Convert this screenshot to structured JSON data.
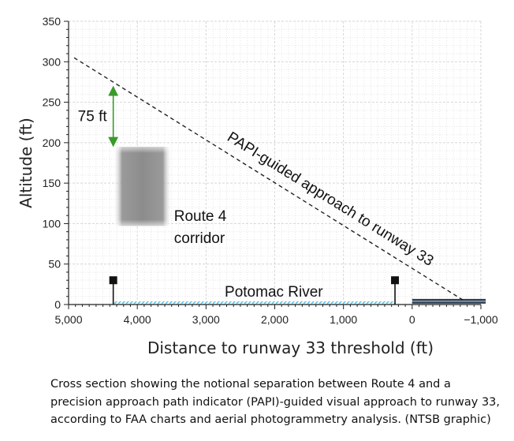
{
  "chart_data": {
    "type": "line",
    "xlabel": "Distance to runway 33 threshold (ft)",
    "ylabel": "Altitude (ft)",
    "xlim": [
      5000,
      -1000
    ],
    "ylim": [
      0,
      350
    ],
    "x_ticks": [
      5000,
      4000,
      3000,
      2000,
      1000,
      0,
      -1000
    ],
    "x_tick_labels": [
      "5,000",
      "4,000",
      "3,000",
      "2,000",
      "1,000",
      "0",
      "−1,000"
    ],
    "y_ticks": [
      0,
      50,
      100,
      150,
      200,
      250,
      300,
      350
    ],
    "y_tick_labels": [
      "0",
      "50",
      "100",
      "150",
      "200",
      "250",
      "300",
      "350"
    ],
    "grid": true,
    "series": [
      {
        "name": "PAPI-guided approach to runway 33",
        "style": "dashed",
        "color": "#222222",
        "x": [
          4920,
          -750
        ],
        "y": [
          305,
          5
        ]
      }
    ],
    "separation": {
      "label": "75 ft",
      "x": 4350,
      "y_from": 270,
      "y_to": 195,
      "color": "#3a9a2a"
    },
    "corridor": {
      "label_line1": "Route 4",
      "label_line2": "corridor",
      "x_from": 4350,
      "x_to": 3500,
      "y_from": 97,
      "y_to": 195,
      "color": "#8a8a8a"
    },
    "river": {
      "label": "Potomac River",
      "x_from": 4350,
      "x_to": 250,
      "color": "#5bc4e0"
    },
    "markers": [
      {
        "x": 4350,
        "y": 30
      },
      {
        "x": 250,
        "y": 30
      }
    ],
    "runway": {
      "x_from": 0,
      "x_to": -1070,
      "y": 4,
      "color": "#2f3f50"
    }
  },
  "caption": "Cross section showing the notional separation between Route 4 and a precision approach path indicator (PAPI)-guided visual approach to runway 33, according to FAA charts and aerial photogrammetry analysis. (NTSB graphic)"
}
